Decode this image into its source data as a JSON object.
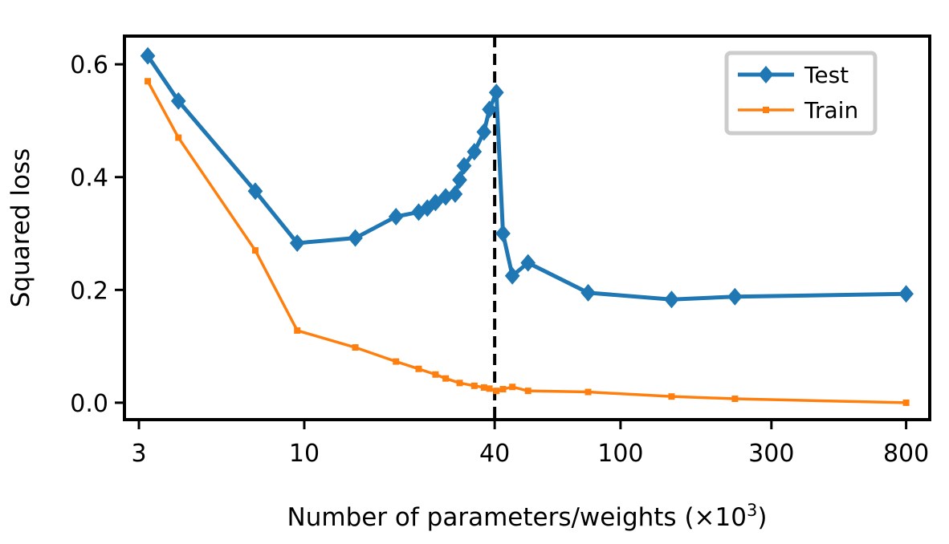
{
  "chart_data": {
    "type": "line",
    "x_scale": "log",
    "xlabel": "Number of parameters/weights (×10",
    "xlabel_sup": "3",
    "xlabel_close": ")",
    "ylabel": "Squared loss",
    "xlim": [
      2.7,
      950
    ],
    "ylim": [
      -0.03,
      0.65
    ],
    "x_ticks": [
      3,
      10,
      40,
      100,
      300,
      800
    ],
    "x_tick_labels": [
      "3",
      "10",
      "40",
      "100",
      "300",
      "800"
    ],
    "y_ticks": [
      0.0,
      0.2,
      0.4,
      0.6
    ],
    "y_tick_labels": [
      "0.0",
      "0.2",
      "0.4",
      "0.6"
    ],
    "vline_x": 40,
    "vline_style": "dashed",
    "legend_position": "top-right",
    "grid": false,
    "series": [
      {
        "name": "Test",
        "color": "#1f77b4",
        "marker": "diamond",
        "x": [
          3.2,
          4.0,
          7.0,
          9.5,
          14.5,
          19.5,
          23.0,
          24.5,
          26.0,
          28.0,
          30.0,
          31.0,
          32.0,
          34.5,
          37.0,
          38.5,
          40.5,
          42.5,
          45.5,
          51.0,
          79.0,
          145.0,
          230.0,
          800.0
        ],
        "y": [
          0.615,
          0.535,
          0.375,
          0.283,
          0.292,
          0.33,
          0.338,
          0.345,
          0.355,
          0.365,
          0.37,
          0.395,
          0.42,
          0.445,
          0.48,
          0.52,
          0.55,
          0.3,
          0.225,
          0.248,
          0.195,
          0.183,
          0.188,
          0.193
        ]
      },
      {
        "name": "Train",
        "color": "#ff7f0e",
        "marker": "square",
        "x": [
          3.2,
          4.0,
          7.0,
          9.5,
          14.5,
          19.5,
          23.0,
          26.0,
          28.0,
          31.0,
          34.5,
          37.0,
          38.5,
          40.5,
          42.5,
          45.5,
          51.0,
          79.0,
          145.0,
          230.0,
          800.0
        ],
        "y": [
          0.57,
          0.47,
          0.27,
          0.128,
          0.098,
          0.073,
          0.06,
          0.05,
          0.043,
          0.035,
          0.03,
          0.027,
          0.025,
          0.021,
          0.024,
          0.028,
          0.021,
          0.019,
          0.011,
          0.007,
          0.0
        ]
      }
    ]
  }
}
